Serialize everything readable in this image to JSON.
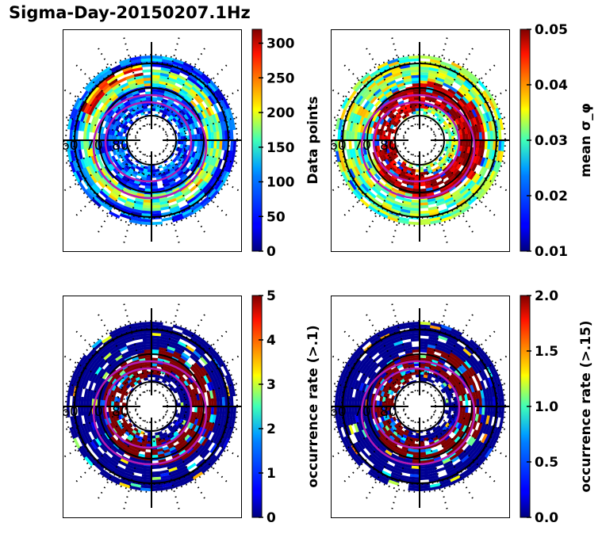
{
  "figure": {
    "title": "Sigma-Day-20150207.1Hz"
  },
  "chart_data": [
    {
      "type": "heatmap",
      "projection": "polar",
      "panel": "top-left",
      "title": "",
      "latitude_labels": [
        "60",
        "70",
        "80"
      ],
      "colormap": "jet",
      "colorbar": {
        "label": "Data points",
        "ticks": [
          "0",
          "50",
          "100",
          "150",
          "200",
          "250",
          "300"
        ],
        "range": [
          0,
          320
        ]
      },
      "description": "Occurrence counts per MLT/MLAT bin; mostly 20-120 with a 200-320 band at dusk/afternoon sector near 65-70 deg",
      "max_sector_value": 320
    },
    {
      "type": "heatmap",
      "projection": "polar",
      "panel": "top-right",
      "title": "",
      "latitude_labels": [
        "60",
        "70",
        "80"
      ],
      "colormap": "jet",
      "colorbar": {
        "label": "mean σ_φ",
        "ticks": [
          "0.01",
          "0.02",
          "0.03",
          "0.04",
          "0.05"
        ],
        "range": [
          0.01,
          0.05
        ]
      },
      "description": "Mean phase scintillation index; >=0.05 within the auroral oval (70-80 deg), 0.025-0.035 equatorward"
    },
    {
      "type": "heatmap",
      "projection": "polar",
      "panel": "bottom-left",
      "title": "",
      "latitude_labels": [
        "60",
        "70",
        "80"
      ],
      "colormap": "jet",
      "colorbar": {
        "label": "occurrence rate (>.1)",
        "ticks": [
          "0",
          "1",
          "2",
          "3",
          "4",
          "5"
        ],
        "range": [
          0,
          5
        ]
      },
      "description": "Occurrence rate of sigma_phi > 0.1; mostly 0, saturating at 5 inside the oval"
    },
    {
      "type": "heatmap",
      "projection": "polar",
      "panel": "bottom-right",
      "title": "",
      "latitude_labels": [
        "60",
        "70",
        "80"
      ],
      "colormap": "jet",
      "colorbar": {
        "label": "occurrence rate (>.15)",
        "ticks": [
          "0.0",
          "0.5",
          "1.0",
          "1.5",
          "2.0"
        ],
        "range": [
          0,
          2
        ]
      },
      "description": "Occurrence rate of sigma_phi > 0.15; mostly 0, saturating at 2 inside the oval"
    }
  ]
}
